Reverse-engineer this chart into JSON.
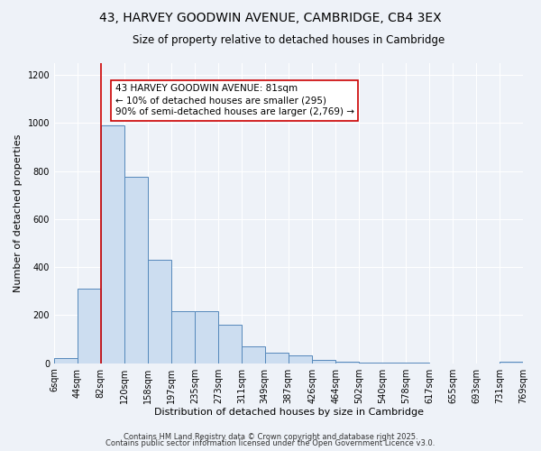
{
  "title": "43, HARVEY GOODWIN AVENUE, CAMBRIDGE, CB4 3EX",
  "subtitle": "Size of property relative to detached houses in Cambridge",
  "xlabel": "Distribution of detached houses by size in Cambridge",
  "ylabel": "Number of detached properties",
  "bins": [
    6,
    44,
    82,
    120,
    158,
    197,
    235,
    273,
    311,
    349,
    387,
    426,
    464,
    502,
    540,
    578,
    617,
    655,
    693,
    731,
    769
  ],
  "counts": [
    20,
    310,
    990,
    775,
    430,
    215,
    215,
    160,
    70,
    45,
    32,
    15,
    5,
    2,
    1,
    1,
    0,
    0,
    0,
    5
  ],
  "bar_face_color": "#ccddf0",
  "bar_edge_color": "#5588bb",
  "background_color": "#eef2f8",
  "grid_color": "#ffffff",
  "vline_x": 82,
  "vline_color": "#cc0000",
  "annotation_line1": "43 HARVEY GOODWIN AVENUE: 81sqm",
  "annotation_line2": "← 10% of detached houses are smaller (295)",
  "annotation_line3": "90% of semi-detached houses are larger (2,769) →",
  "ylim": [
    0,
    1250
  ],
  "yticks": [
    0,
    200,
    400,
    600,
    800,
    1000,
    1200
  ],
  "tick_labels": [
    "6sqm",
    "44sqm",
    "82sqm",
    "120sqm",
    "158sqm",
    "197sqm",
    "235sqm",
    "273sqm",
    "311sqm",
    "349sqm",
    "387sqm",
    "426sqm",
    "464sqm",
    "502sqm",
    "540sqm",
    "578sqm",
    "617sqm",
    "655sqm",
    "693sqm",
    "731sqm",
    "769sqm"
  ],
  "footnote1": "Contains HM Land Registry data © Crown copyright and database right 2025.",
  "footnote2": "Contains public sector information licensed under the Open Government Licence v3.0.",
  "title_fontsize": 10,
  "subtitle_fontsize": 8.5,
  "ylabel_fontsize": 8,
  "xlabel_fontsize": 8,
  "tick_fontsize": 7,
  "annotation_fontsize": 7.5,
  "footnote_fontsize": 6
}
